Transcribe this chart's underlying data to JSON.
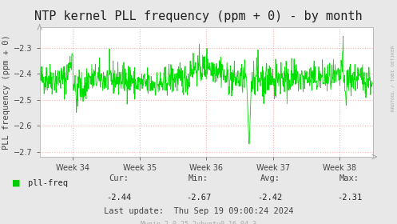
{
  "title": "NTP kernel PLL frequency (ppm + 0) - by month",
  "ylabel": "PLL frequency (ppm + 0)",
  "bg_color": "#e8e8e8",
  "plot_bg_color": "#ffffff",
  "line_color": "#00e000",
  "grid_color": "#ff9999",
  "ylim": [
    -2.72,
    -2.22
  ],
  "yticks": [
    -2.3,
    -2.4,
    -2.5,
    -2.6,
    -2.7
  ],
  "week_labels": [
    "Week 34",
    "Week 35",
    "Week 36",
    "Week 37",
    "Week 38"
  ],
  "legend_label": "pll-freq",
  "legend_color": "#00cc00",
  "cur": "-2.44",
  "min": "-2.67",
  "avg": "-2.42",
  "max": "-2.31",
  "last_update": "Thu Sep 19 09:00:24 2024",
  "munin_version": "Munin 2.0.25-2ubuntu0.16.04.3",
  "rrdtool_label": "RRDTOOL / TOBI OETIKER",
  "title_fontsize": 11,
  "axis_fontsize": 7.5,
  "tick_fontsize": 7,
  "small_fontsize": 6
}
